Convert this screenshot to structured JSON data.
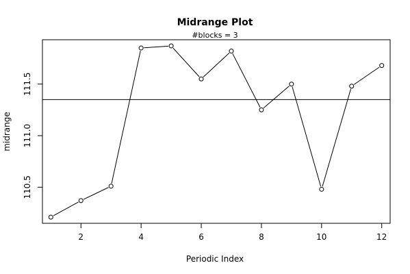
{
  "chart_data": {
    "type": "line",
    "title": "Midrange Plot",
    "subtitle": "#blocks =  3",
    "xlabel": "Periodic Index",
    "ylabel": "midrange",
    "xlim": [
      0.72,
      12.28
    ],
    "ylim": [
      110.15,
      111.93
    ],
    "x_ticks": [
      2,
      4,
      6,
      8,
      10,
      12
    ],
    "x_tick_labels": [
      "2",
      "4",
      "6",
      "8",
      "10",
      "12"
    ],
    "y_ticks": [
      110.5,
      111.0,
      111.5
    ],
    "y_tick_labels": [
      "110.5",
      "111.0",
      "111.5"
    ],
    "series": [
      {
        "x": [
          1,
          2,
          3,
          4,
          5,
          6,
          7,
          8,
          9,
          10,
          11,
          12
        ],
        "values": [
          110.21,
          110.37,
          110.51,
          111.85,
          111.87,
          111.55,
          111.82,
          111.25,
          111.5,
          110.48,
          111.48,
          111.68
        ],
        "marker": "open-circle",
        "color": "#000000"
      }
    ],
    "reference_line": {
      "y": 111.35,
      "color": "#000000"
    },
    "grid": false,
    "legend": "none"
  }
}
